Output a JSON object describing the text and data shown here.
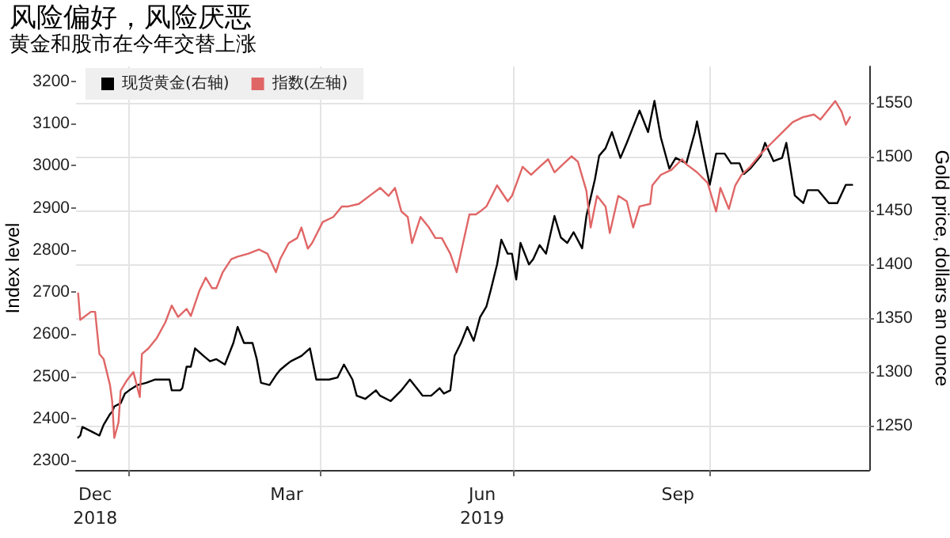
{
  "chart_data": {
    "type": "line",
    "title": "风险偏好，风险厌恶",
    "subtitle": "黄金和股市在今年交替上涨",
    "ylabel": "Index level",
    "y2label": "Gold price, dollars an ounce",
    "xlim": [
      "2018-12-07",
      "2019-12-15"
    ],
    "xticks": [
      {
        "value": "2018-12-16",
        "label": "Dec\n2018"
      },
      {
        "value": "2019-01-01",
        "label": null
      },
      {
        "value": "2019-03-16",
        "label": "Mar"
      },
      {
        "value": "2019-04-01",
        "label": null
      },
      {
        "value": "2019-06-16",
        "label": "Jun\n2019"
      },
      {
        "value": "2019-07-01",
        "label": null
      },
      {
        "value": "2019-09-16",
        "label": "Sep"
      },
      {
        "value": "2019-10-01",
        "label": null
      }
    ],
    "ylim": [
      2278,
      3235
    ],
    "yticks": [
      2300,
      2400,
      2500,
      2600,
      2700,
      2800,
      2900,
      3000,
      3100,
      3200
    ],
    "y2lim": [
      1209,
      1584
    ],
    "y2ticks": [
      1250,
      1300,
      1350,
      1400,
      1450,
      1500,
      1550
    ],
    "grid": true,
    "legend": "top left",
    "marker": "none",
    "line_style": "solid",
    "series": [
      {
        "name": "现货黄金(右轴)",
        "color": "#000000",
        "axis": "y2",
        "x": [
          "2018-12-08",
          "2018-12-09",
          "2018-12-10",
          "2018-12-13",
          "2018-12-15",
          "2018-12-18",
          "2018-12-20",
          "2018-12-23",
          "2018-12-24",
          "2018-12-25",
          "2018-12-28",
          "2018-12-30",
          "2019-01-01",
          "2019-01-05",
          "2019-01-09",
          "2019-01-13",
          "2019-01-16",
          "2019-01-20",
          "2019-01-21",
          "2019-01-25",
          "2019-01-26",
          "2019-01-28",
          "2019-01-30",
          "2019-02-01",
          "2019-02-05",
          "2019-02-08",
          "2019-02-11",
          "2019-02-15",
          "2019-02-19",
          "2019-02-21",
          "2019-02-24",
          "2019-02-28",
          "2019-03-02",
          "2019-03-04",
          "2019-03-08",
          "2019-03-11",
          "2019-03-13",
          "2019-03-16",
          "2019-03-18",
          "2019-03-23",
          "2019-03-27",
          "2019-03-30",
          "2019-04-05",
          "2019-04-09",
          "2019-04-12",
          "2019-04-16",
          "2019-04-18",
          "2019-04-22",
          "2019-04-27",
          "2019-04-29",
          "2019-05-04",
          "2019-05-09",
          "2019-05-13",
          "2019-05-17",
          "2019-05-19",
          "2019-05-23",
          "2019-05-27",
          "2019-05-29",
          "2019-06-01",
          "2019-06-03",
          "2019-06-06",
          "2019-06-09",
          "2019-06-12",
          "2019-06-15",
          "2019-06-18",
          "2019-06-20",
          "2019-06-23",
          "2019-06-25",
          "2019-06-28",
          "2019-06-30",
          "2019-07-02",
          "2019-07-04",
          "2019-07-08",
          "2019-07-10",
          "2019-07-13",
          "2019-07-16",
          "2019-07-20",
          "2019-07-23",
          "2019-07-26",
          "2019-07-29",
          "2019-08-02",
          "2019-08-04",
          "2019-08-08",
          "2019-08-10",
          "2019-08-13",
          "2019-08-16",
          "2019-08-20",
          "2019-08-23",
          "2019-08-26",
          "2019-08-29",
          "2019-09-02",
          "2019-09-05",
          "2019-09-08",
          "2019-09-12",
          "2019-09-15",
          "2019-09-20",
          "2019-09-24",
          "2019-09-25",
          "2019-09-28",
          "2019-10-01",
          "2019-10-04",
          "2019-10-08",
          "2019-10-11",
          "2019-10-15",
          "2019-10-17",
          "2019-10-20",
          "2019-10-25",
          "2019-10-27",
          "2019-10-31",
          "2019-11-04",
          "2019-11-06",
          "2019-11-10",
          "2019-11-14",
          "2019-11-16",
          "2019-11-21",
          "2019-11-26",
          "2019-11-30",
          "2019-12-04",
          "2019-12-07"
        ],
        "values": [
          1239,
          1241,
          1249,
          1246,
          1244,
          1241,
          1251,
          1261,
          1263,
          1268,
          1271,
          1280,
          1283,
          1288,
          1290,
          1293,
          1293,
          1293,
          1283,
          1283,
          1285,
          1305,
          1305,
          1322,
          1315,
          1310,
          1312,
          1307,
          1327,
          1342,
          1327,
          1327,
          1312,
          1290,
          1288,
          1297,
          1302,
          1307,
          1310,
          1315,
          1322,
          1293,
          1293,
          1295,
          1307,
          1293,
          1278,
          1275,
          1283,
          1278,
          1273,
          1283,
          1293,
          1283,
          1278,
          1278,
          1285,
          1280,
          1283,
          1315,
          1327,
          1342,
          1329,
          1351,
          1361,
          1376,
          1400,
          1423,
          1410,
          1410,
          1386,
          1420,
          1400,
          1405,
          1418,
          1410,
          1445,
          1425,
          1420,
          1430,
          1415,
          1445,
          1479,
          1501,
          1508,
          1523,
          1499,
          1513,
          1528,
          1543,
          1523,
          1552,
          1518,
          1489,
          1499,
          1494,
          1523,
          1533,
          1503,
          1474,
          1503,
          1503,
          1494,
          1494,
          1484,
          1489,
          1501,
          1513,
          1496,
          1499,
          1513,
          1464,
          1457,
          1469,
          1469,
          1457,
          1457,
          1474,
          1474
        ]
      },
      {
        "name": "指数(左轴)",
        "color": "#e06666",
        "x": [
          "2018-12-08",
          "2018-12-09",
          "2018-12-14",
          "2018-12-16",
          "2018-12-18",
          "2018-12-20",
          "2018-12-23",
          "2018-12-24",
          "2018-12-25",
          "2018-12-27",
          "2018-12-28",
          "2018-12-31",
          "2019-01-03",
          "2019-01-06",
          "2019-01-07",
          "2019-01-10",
          "2019-01-14",
          "2019-01-18",
          "2019-01-21",
          "2019-01-24",
          "2019-01-28",
          "2019-01-30",
          "2019-02-03",
          "2019-02-06",
          "2019-02-09",
          "2019-02-11",
          "2019-02-14",
          "2019-02-18",
          "2019-02-21",
          "2019-02-26",
          "2019-03-03",
          "2019-03-07",
          "2019-03-11",
          "2019-03-13",
          "2019-03-17",
          "2019-03-21",
          "2019-03-23",
          "2019-03-26",
          "2019-03-28",
          "2019-04-02",
          "2019-04-07",
          "2019-04-11",
          "2019-04-14",
          "2019-04-19",
          "2019-04-24",
          "2019-04-29",
          "2019-05-03",
          "2019-05-06",
          "2019-05-09",
          "2019-05-12",
          "2019-05-14",
          "2019-05-18",
          "2019-05-22",
          "2019-05-25",
          "2019-05-28",
          "2019-06-01",
          "2019-06-04",
          "2019-06-07",
          "2019-06-10",
          "2019-06-13",
          "2019-06-15",
          "2019-06-18",
          "2019-06-23",
          "2019-06-28",
          "2019-06-30",
          "2019-07-05",
          "2019-07-09",
          "2019-07-13",
          "2019-07-17",
          "2019-07-20",
          "2019-07-24",
          "2019-07-28",
          "2019-07-31",
          "2019-08-04",
          "2019-08-06",
          "2019-08-09",
          "2019-08-13",
          "2019-08-15",
          "2019-08-19",
          "2019-08-23",
          "2019-08-26",
          "2019-08-29",
          "2019-09-03",
          "2019-09-04",
          "2019-09-08",
          "2019-09-13",
          "2019-09-18",
          "2019-09-20",
          "2019-09-25",
          "2019-09-30",
          "2019-10-04",
          "2019-10-06",
          "2019-10-10",
          "2019-10-13",
          "2019-10-16",
          "2019-10-20",
          "2019-10-25",
          "2019-10-30",
          "2019-11-04",
          "2019-11-09",
          "2019-11-14",
          "2019-11-19",
          "2019-11-22",
          "2019-11-29",
          "2019-12-02",
          "2019-12-04",
          "2019-12-06"
        ],
        "values": [
          2697,
          2634,
          2653,
          2653,
          2553,
          2541,
          2479,
          2441,
          2354,
          2391,
          2466,
          2491,
          2510,
          2451,
          2553,
          2566,
          2591,
          2628,
          2668,
          2641,
          2660,
          2643,
          2703,
          2734,
          2709,
          2709,
          2747,
          2778,
          2784,
          2791,
          2801,
          2791,
          2747,
          2778,
          2816,
          2828,
          2853,
          2803,
          2816,
          2866,
          2878,
          2903,
          2903,
          2909,
          2928,
          2947,
          2928,
          2947,
          2891,
          2878,
          2816,
          2878,
          2853,
          2828,
          2828,
          2791,
          2747,
          2816,
          2884,
          2884,
          2891,
          2903,
          2953,
          2915,
          2928,
          2997,
          2978,
          2997,
          3015,
          2984,
          3003,
          3022,
          3009,
          2940,
          2853,
          2928,
          2903,
          2840,
          2928,
          2915,
          2853,
          2903,
          2909,
          2953,
          2978,
          2990,
          3015,
          3003,
          2984,
          2959,
          2891,
          2947,
          2897,
          2953,
          2978,
          2997,
          3028,
          3053,
          3078,
          3103,
          3115,
          3121,
          3109,
          3153,
          3128,
          3097,
          3115
        ]
      }
    ]
  }
}
